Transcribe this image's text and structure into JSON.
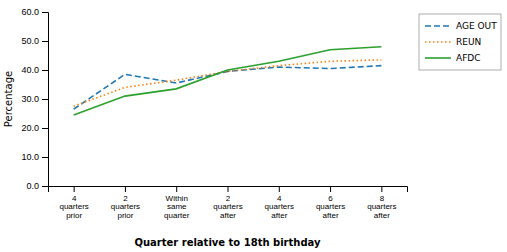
{
  "chart_data": {
    "type": "line",
    "x_label": "Quarter relative to 18th birthday",
    "y_label": "Percentage",
    "categories": [
      "4\nquarters\nprior",
      "2\nquarters\nprior",
      "Within\nsame\nquarter",
      "2\nquarters\nafter",
      "4\nquarters\nafter",
      "6\nquarters\nafter",
      "8\nquarters\nafter"
    ],
    "series": [
      {
        "name": "AGE OUT",
        "line_style": "dashed",
        "values": [
          26.5,
          38.5,
          35.5,
          39.5,
          41.0,
          40.5,
          41.5
        ]
      },
      {
        "name": "REUN",
        "line_style": "dotted",
        "values": [
          27.5,
          34.0,
          36.5,
          39.5,
          41.5,
          43.0,
          43.5
        ]
      },
      {
        "name": "AFDC",
        "line_style": "solid",
        "values": [
          24.5,
          31.0,
          33.5,
          40.0,
          43.0,
          47.0,
          48.0
        ]
      }
    ],
    "ylim": [
      0.0,
      60.0
    ],
    "yticks": [
      {
        "value": 0,
        "label": "0.0"
      },
      {
        "value": 10,
        "label": "10.0"
      },
      {
        "value": 20,
        "label": "20.0"
      },
      {
        "value": 30,
        "label": "30.0"
      },
      {
        "value": 40,
        "label": "40.0"
      },
      {
        "value": 50,
        "label": "50.0"
      },
      {
        "value": 60,
        "label": "60.0"
      }
    ],
    "grid": false,
    "legend": "right"
  }
}
